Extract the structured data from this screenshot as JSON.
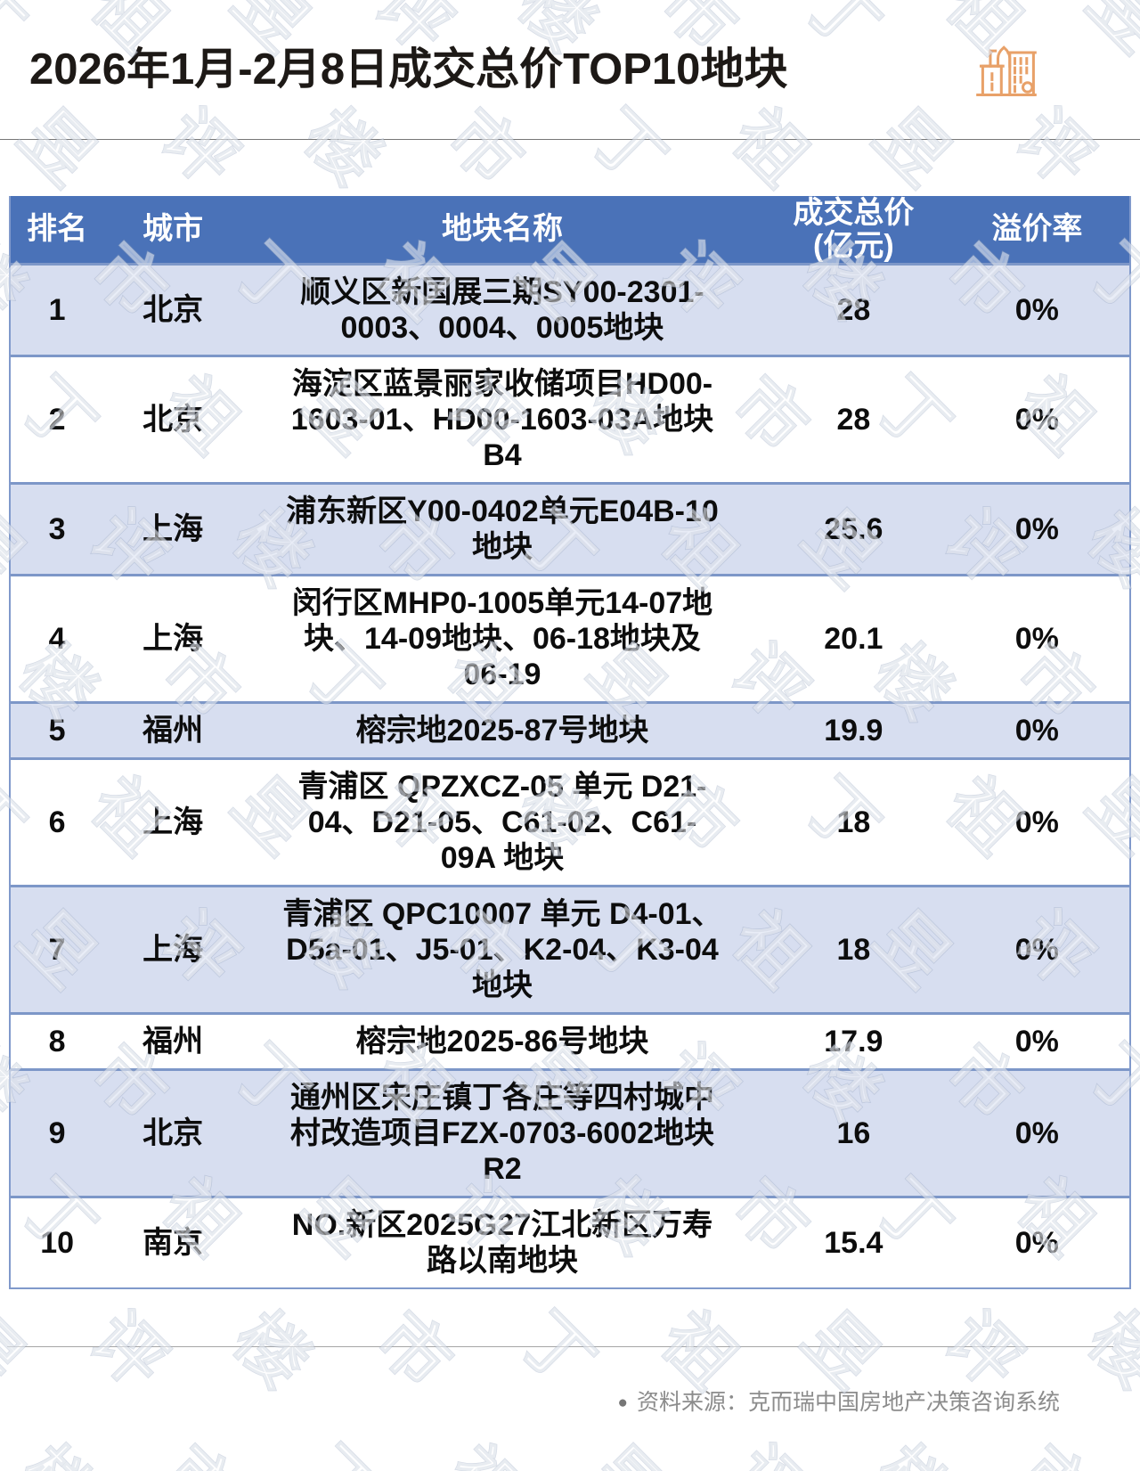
{
  "header": {
    "title": "2026年1月-2月8日成交总价TOP10地块"
  },
  "footer": {
    "bullet": "●",
    "source": "资料来源：克而瑞中国房地产决策咨询系统"
  },
  "watermark": {
    "text": "丁祖昱评楼市"
  },
  "colors": {
    "header_bg": "#4a72b8",
    "row_alt_bg": "#d7def0",
    "row_bg": "#ffffff",
    "grid_line": "#7d97c8",
    "icon_orange": "#e8a169",
    "title_text": "#1d1916",
    "cell_text": "#0d0d0d",
    "source_text": "#8c8c8c"
  },
  "chart_data": {
    "type": "table",
    "title": "2026年1月-2月8日成交总价TOP10地块",
    "columns": [
      "排名",
      "城市",
      "地块名称",
      "成交总价\n(亿元)",
      "溢价率"
    ],
    "rows": [
      {
        "rank": "1",
        "city": "北京",
        "name": "顺义区新国展三期SY00-2301-0003、0004、0005地块",
        "price": "28",
        "premium": "0%"
      },
      {
        "rank": "2",
        "city": "北京",
        "name": "海淀区蓝景丽家收储项目HD00-1603-01、HD00-1603-03A地块B4",
        "price": "28",
        "premium": "0%"
      },
      {
        "rank": "3",
        "city": "上海",
        "name": "浦东新区Y00-0402单元E04B-10地块",
        "price": "25.6",
        "premium": "0%"
      },
      {
        "rank": "4",
        "city": "上海",
        "name": "闵行区MHP0-1005单元14-07地块、14-09地块、06-18地块及06-19",
        "price": "20.1",
        "premium": "0%"
      },
      {
        "rank": "5",
        "city": "福州",
        "name": "榕宗地2025-87号地块",
        "price": "19.9",
        "premium": "0%"
      },
      {
        "rank": "6",
        "city": "上海",
        "name": "青浦区 QPZXCZ-05 单元 D21-04、D21-05、C61-02、C61-09A 地块",
        "price": "18",
        "premium": "0%"
      },
      {
        "rank": "7",
        "city": "上海",
        "name": "青浦区 QPC10007 单元 D4-01、D5a-01、J5-01、K2-04、K3-04 地块",
        "price": "18",
        "premium": "0%"
      },
      {
        "rank": "8",
        "city": "福州",
        "name": "榕宗地2025-86号地块",
        "price": "17.9",
        "premium": "0%"
      },
      {
        "rank": "9",
        "city": "北京",
        "name": "通州区宋庄镇丁各庄等四村城中村改造项目FZX-0703-6002地块R2",
        "price": "16",
        "premium": "0%"
      },
      {
        "rank": "10",
        "city": "南京",
        "name": "NO.新区2025G27江北新区万寿路以南地块",
        "price": "15.4",
        "premium": "0%"
      }
    ]
  }
}
